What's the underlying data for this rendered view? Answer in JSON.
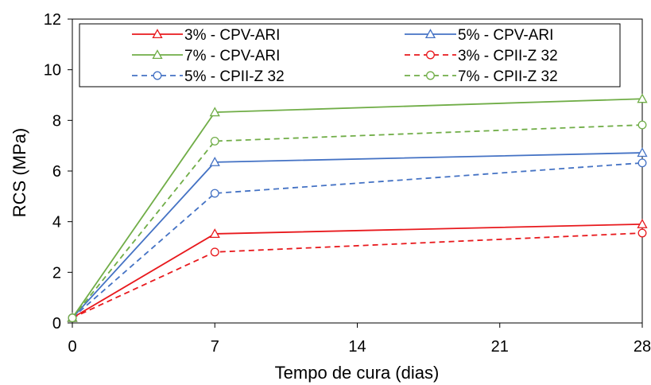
{
  "chart_data": {
    "type": "line",
    "xlabel": "Tempo de cura (dias)",
    "ylabel": "RCS (MPa)",
    "xlim": [
      0,
      28
    ],
    "ylim": [
      0,
      12
    ],
    "xticks": [
      0,
      7,
      14,
      21,
      28
    ],
    "yticks": [
      0,
      2,
      4,
      6,
      8,
      10,
      12
    ],
    "xtick_labels": [
      "0",
      "7",
      "14",
      "21",
      "28"
    ],
    "ytick_labels": [
      "0",
      "2",
      "4",
      "6",
      "8",
      "10",
      "12"
    ],
    "legend_position": "top",
    "grid": false,
    "x": [
      0,
      7,
      28
    ],
    "series": [
      {
        "name": "3% - CPV-ARI",
        "values": [
          0.2,
          3.52,
          3.9
        ],
        "color": "#e8191d",
        "dash": "solid",
        "marker": "triangle"
      },
      {
        "name": "5% - CPV-ARI",
        "values": [
          0.2,
          6.35,
          6.72
        ],
        "color": "#4472c4",
        "dash": "solid",
        "marker": "triangle"
      },
      {
        "name": "7% - CPV-ARI",
        "values": [
          0.2,
          8.32,
          8.85
        ],
        "color": "#70ad47",
        "dash": "solid",
        "marker": "triangle"
      },
      {
        "name": "3% - CPII-Z 32",
        "values": [
          0.2,
          2.8,
          3.55
        ],
        "color": "#e8191d",
        "dash": "dashed",
        "marker": "circle"
      },
      {
        "name": "5% - CPII-Z 32",
        "values": [
          0.2,
          5.12,
          6.32
        ],
        "color": "#4472c4",
        "dash": "dashed",
        "marker": "circle"
      },
      {
        "name": "7% - CPII-Z 32",
        "values": [
          0.2,
          7.18,
          7.82
        ],
        "color": "#70ad47",
        "dash": "dashed",
        "marker": "circle"
      }
    ]
  }
}
